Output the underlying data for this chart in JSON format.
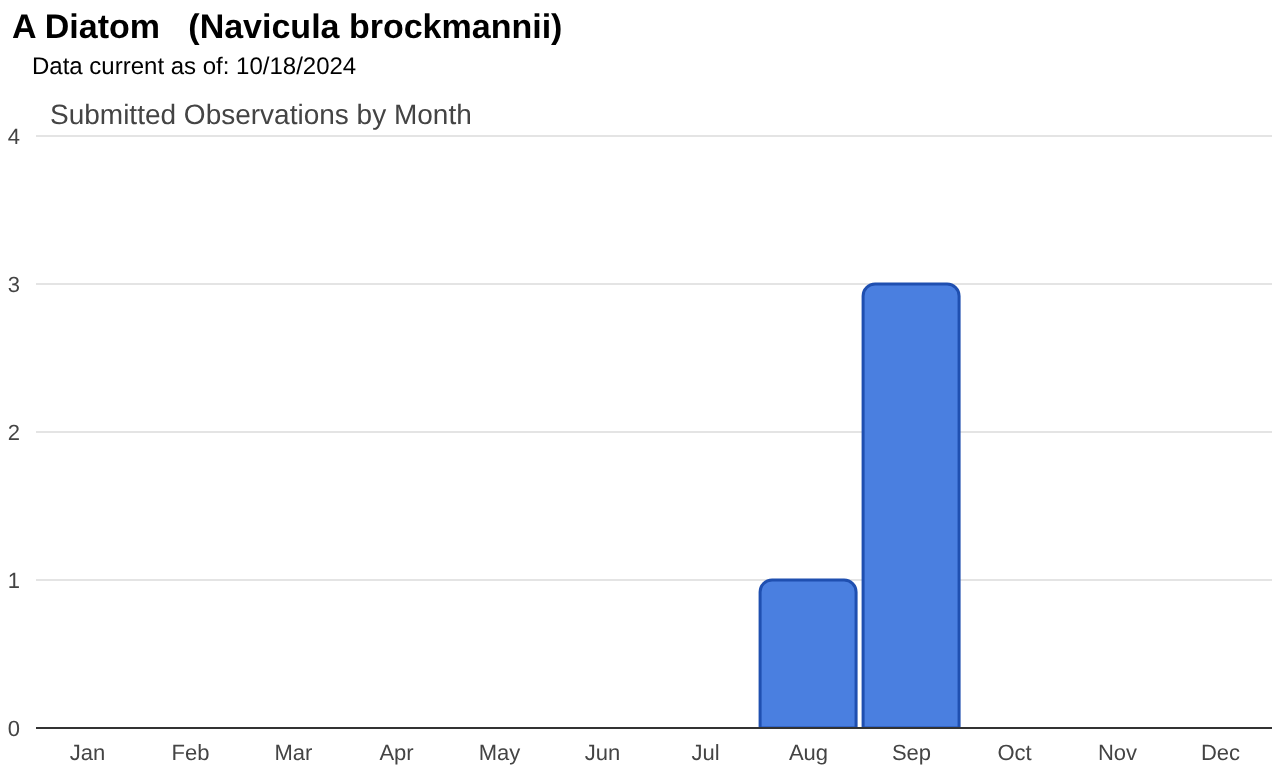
{
  "chart_data": {
    "type": "bar",
    "title": "A Diatom   (Navicula brockmannii)",
    "subtitle": "Data current as of: 10/18/2024",
    "annotations": [
      "Submitted Observations by Month"
    ],
    "categories": [
      "Jan",
      "Feb",
      "Mar",
      "Apr",
      "May",
      "Jun",
      "Jul",
      "Aug",
      "Sep",
      "Oct",
      "Nov",
      "Dec"
    ],
    "values": [
      0,
      0,
      0,
      0,
      0,
      0,
      0,
      1,
      3,
      0,
      0,
      0
    ],
    "color": "#4a7fe0",
    "ylim": [
      0,
      4
    ],
    "yticks": [
      0,
      1,
      2,
      3,
      4
    ],
    "grid": "y"
  }
}
